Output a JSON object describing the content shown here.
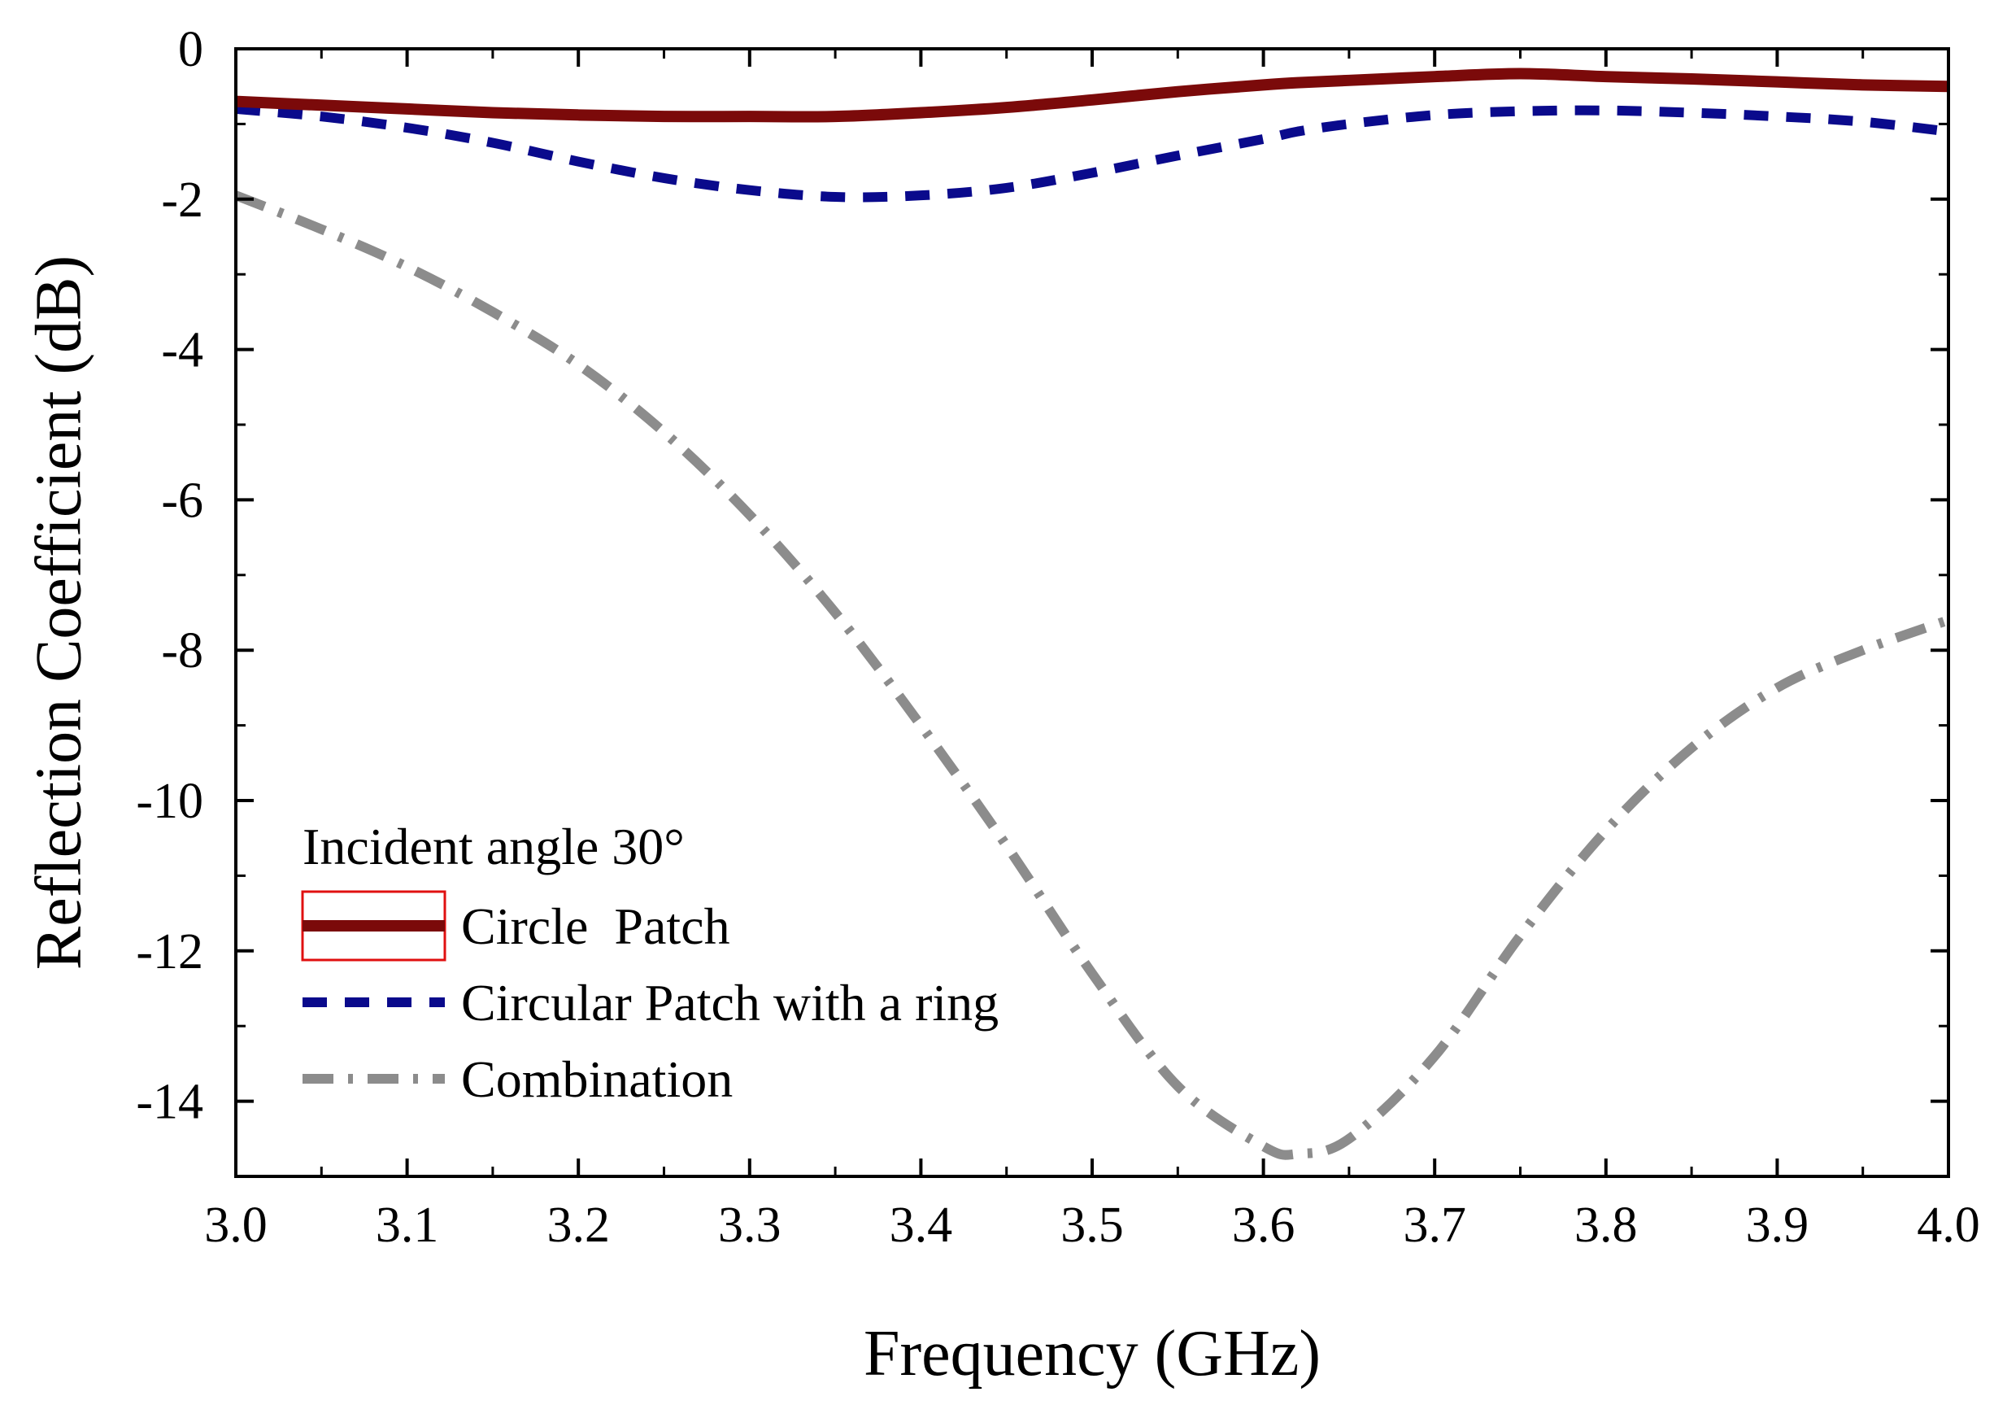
{
  "chart_data": {
    "type": "line",
    "title": "",
    "xlabel": "Frequency (GHz)",
    "ylabel": "Reflection Coefficient (dB)",
    "xlim": [
      3.0,
      4.0
    ],
    "ylim": [
      -15,
      0
    ],
    "x_ticks": [
      "3.0",
      "3.1",
      "3.2",
      "3.3",
      "3.4",
      "3.5",
      "3.6",
      "3.7",
      "3.8",
      "3.9",
      "4.0"
    ],
    "y_ticks": [
      "0",
      "-2",
      "-4",
      "-6",
      "-8",
      "-10",
      "-12",
      "-14"
    ],
    "grid": false,
    "legend": {
      "title": "Incident angle 30°",
      "position": "bottom-left"
    },
    "x": [
      3.0,
      3.05,
      3.1,
      3.15,
      3.2,
      3.25,
      3.3,
      3.35,
      3.4,
      3.45,
      3.5,
      3.55,
      3.6,
      3.62,
      3.65,
      3.7,
      3.75,
      3.8,
      3.85,
      3.9,
      3.95,
      4.0
    ],
    "series": [
      {
        "name": "Circle  Patch",
        "color": "#7b0a0a",
        "style": "solid",
        "values": [
          -0.7,
          -0.75,
          -0.8,
          -0.85,
          -0.88,
          -0.9,
          -0.9,
          -0.9,
          -0.85,
          -0.78,
          -0.68,
          -0.57,
          -0.48,
          -0.45,
          -0.42,
          -0.37,
          -0.33,
          -0.37,
          -0.4,
          -0.44,
          -0.48,
          -0.5
        ]
      },
      {
        "name": "Circular Patch with a ring",
        "color": "#0a0a8c",
        "style": "dashed",
        "values": [
          -0.8,
          -0.9,
          -1.05,
          -1.25,
          -1.5,
          -1.72,
          -1.88,
          -1.97,
          -1.95,
          -1.85,
          -1.65,
          -1.42,
          -1.2,
          -1.1,
          -1.0,
          -0.88,
          -0.83,
          -0.82,
          -0.85,
          -0.9,
          -0.97,
          -1.1
        ]
      },
      {
        "name": "Combination",
        "color": "#8c8c8c",
        "style": "dash-dot",
        "values": [
          -1.95,
          -2.4,
          -2.9,
          -3.5,
          -4.2,
          -5.1,
          -6.2,
          -7.5,
          -9.0,
          -10.6,
          -12.3,
          -13.8,
          -14.6,
          -14.7,
          -14.5,
          -13.4,
          -11.8,
          -10.4,
          -9.3,
          -8.5,
          -8.0,
          -7.6
        ]
      }
    ]
  }
}
